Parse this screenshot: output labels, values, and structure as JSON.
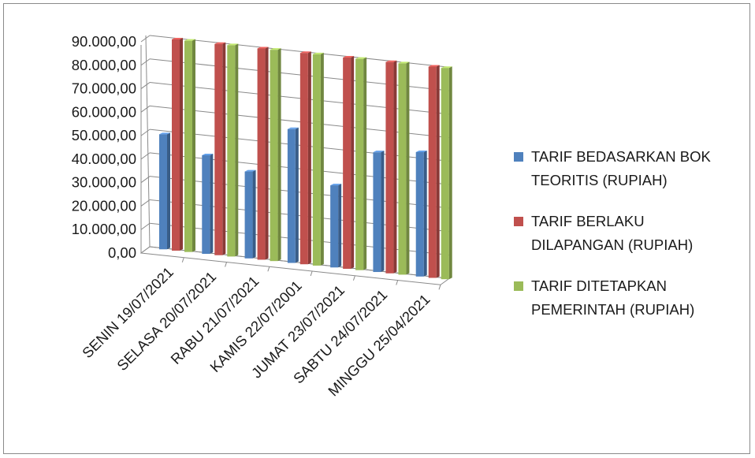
{
  "chart_data": {
    "type": "bar",
    "categories": [
      "SENIN 19/07/2021",
      "SELASA 20/07/2021",
      "RABU 21/07/2021",
      "KAMIS    22/07/2001",
      "JUMAT 23/07/2021",
      "SABTU 24/07/2021",
      "MINGGU 25/04/2021"
    ],
    "series": [
      {
        "name": "TARIF BEDASARKAN BOK TEORITIS (RUPIAH)",
        "color": "#4f81bd",
        "values": [
          49000,
          42000,
          37000,
          57000,
          35000,
          51000,
          53000
        ]
      },
      {
        "name": "TARIF BERLAKU DILAPANGAN (RUPIAH)",
        "color": "#c0504d",
        "values": [
          90000,
          90000,
          90000,
          90000,
          90000,
          90000,
          90000
        ]
      },
      {
        "name": "TARIF DITETAPKAN PEMERINTAH (RUPIAH)",
        "color": "#9bbb59",
        "values": [
          90000,
          90000,
          90000,
          90000,
          90000,
          90000,
          90000
        ]
      }
    ],
    "y_ticks": [
      "0,00",
      "10.000,00",
      "20.000,00",
      "30.000,00",
      "40.000,00",
      "50.000,00",
      "60.000,00",
      "70.000,00",
      "80.000,00",
      "90.000,00"
    ],
    "ylim": [
      0,
      90000
    ],
    "grid": true,
    "legend_position": "right",
    "view": "3d-clustered-column"
  },
  "legend": {
    "items": [
      {
        "line1": "TARIF BEDASARKAN BOK",
        "line2": "TEORITIS (RUPIAH)",
        "color": "#4f81bd"
      },
      {
        "line1": "TARIF BERLAKU",
        "line2": "DILAPANGAN (RUPIAH)",
        "color": "#c0504d"
      },
      {
        "line1": "TARIF DITETAPKAN",
        "line2": "PEMERINTAH (RUPIAH)",
        "color": "#9bbb59"
      }
    ]
  }
}
